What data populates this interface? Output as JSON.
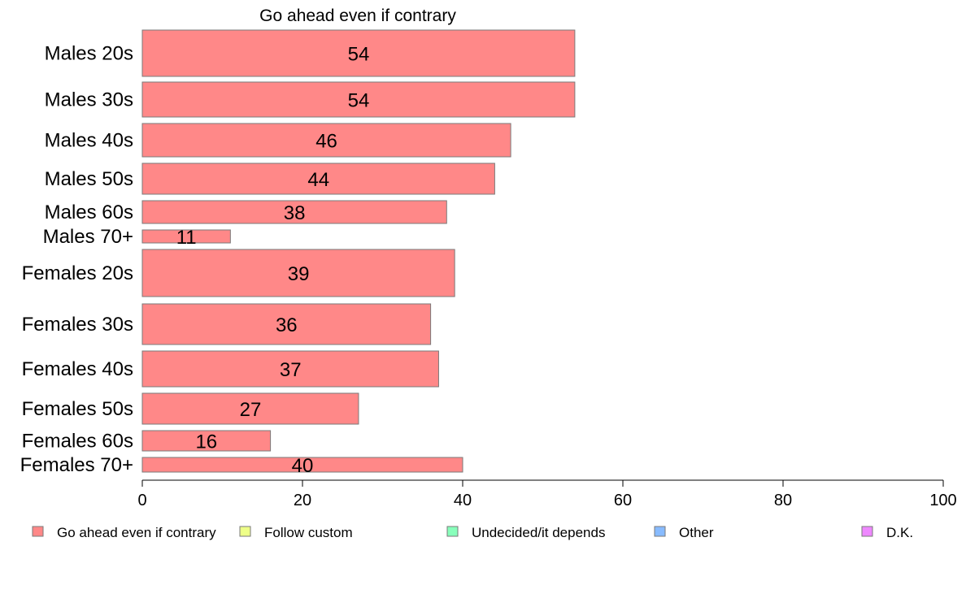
{
  "chart_data": {
    "type": "bar",
    "orientation": "horizontal",
    "title": "Go ahead even if contrary",
    "xlabel": "",
    "ylabel": "",
    "xlim": [
      0,
      100
    ],
    "xticks": [
      0,
      20,
      40,
      60,
      80,
      100
    ],
    "grid": false,
    "categories": [
      "Males 20s",
      "Males 30s",
      "Males 40s",
      "Males 50s",
      "Males 60s",
      "Males 70+",
      "Females 20s",
      "Females 30s",
      "Females 40s",
      "Females 50s",
      "Females 60s",
      "Females 70+"
    ],
    "values": [
      54,
      54,
      46,
      44,
      38,
      11,
      39,
      36,
      37,
      27,
      16,
      40
    ],
    "bar_color": "#FF8888",
    "bar_border": "#7a7a7a",
    "legend_position": "bottom",
    "legend": [
      {
        "label": "Go ahead even if contrary",
        "color": "#FF8888"
      },
      {
        "label": "Follow custom",
        "color": "#EEFF88"
      },
      {
        "label": "Undecided/it depends",
        "color": "#88FFBB"
      },
      {
        "label": "Other",
        "color": "#88BBFF"
      },
      {
        "label": "D.K.",
        "color": "#EE88FF"
      }
    ]
  }
}
